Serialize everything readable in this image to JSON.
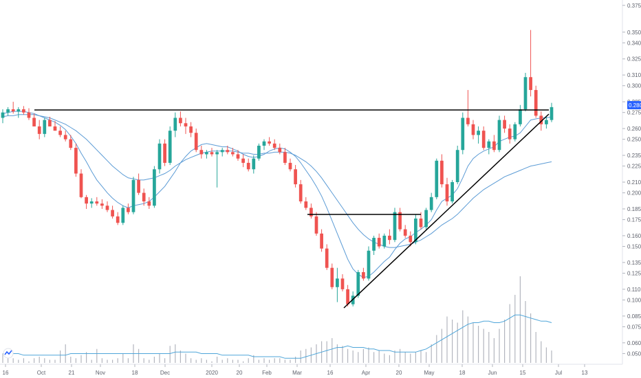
{
  "chart_data": {
    "type": "candlestick",
    "price_axis": {
      "ticks": [
        "0.050",
        "0.060",
        "0.075",
        "0.085",
        "0.100",
        "0.110",
        "0.125",
        "0.135",
        "0.150",
        "0.160",
        "0.175",
        "0.185",
        "0.200",
        "0.210",
        "0.225",
        "0.235",
        "0.250",
        "0.260",
        "0.275",
        "0.285",
        "0.300",
        "0.310",
        "0.325",
        "0.340",
        "0.350",
        "0.375"
      ],
      "range": [
        0.04,
        0.38
      ],
      "last_price_label": "0.280"
    },
    "time_axis": {
      "labels": [
        "16",
        "Oct",
        "21",
        "Nov",
        "18",
        "Dec",
        "2020",
        "20",
        "Feb",
        "Mar",
        "16",
        "Apr",
        "20",
        "May",
        "18",
        "Jun",
        "15",
        "Jul",
        "13"
      ]
    },
    "candles": [
      [
        0.27,
        0.278,
        0.265,
        0.275
      ],
      [
        0.275,
        0.28,
        0.272,
        0.278
      ],
      [
        0.278,
        0.285,
        0.274,
        0.276
      ],
      [
        0.276,
        0.28,
        0.27,
        0.278
      ],
      [
        0.278,
        0.281,
        0.273,
        0.275
      ],
      [
        0.275,
        0.279,
        0.268,
        0.27
      ],
      [
        0.27,
        0.274,
        0.262,
        0.262
      ],
      [
        0.262,
        0.268,
        0.25,
        0.255
      ],
      [
        0.255,
        0.27,
        0.252,
        0.268
      ],
      [
        0.268,
        0.271,
        0.262,
        0.262
      ],
      [
        0.262,
        0.267,
        0.258,
        0.258
      ],
      [
        0.258,
        0.262,
        0.252,
        0.254
      ],
      [
        0.254,
        0.258,
        0.248,
        0.25
      ],
      [
        0.25,
        0.254,
        0.24,
        0.242
      ],
      [
        0.242,
        0.246,
        0.215,
        0.218
      ],
      [
        0.218,
        0.222,
        0.195,
        0.196
      ],
      [
        0.196,
        0.198,
        0.185,
        0.19
      ],
      [
        0.19,
        0.195,
        0.186,
        0.192
      ],
      [
        0.192,
        0.196,
        0.188,
        0.19
      ],
      [
        0.19,
        0.194,
        0.185,
        0.188
      ],
      [
        0.188,
        0.192,
        0.182,
        0.184
      ],
      [
        0.184,
        0.188,
        0.176,
        0.178
      ],
      [
        0.178,
        0.182,
        0.17,
        0.172
      ],
      [
        0.172,
        0.188,
        0.17,
        0.186
      ],
      [
        0.186,
        0.19,
        0.18,
        0.182
      ],
      [
        0.182,
        0.215,
        0.18,
        0.212
      ],
      [
        0.212,
        0.218,
        0.198,
        0.2
      ],
      [
        0.2,
        0.204,
        0.188,
        0.192
      ],
      [
        0.192,
        0.196,
        0.185,
        0.188
      ],
      [
        0.188,
        0.225,
        0.186,
        0.222
      ],
      [
        0.222,
        0.25,
        0.218,
        0.246
      ],
      [
        0.246,
        0.25,
        0.225,
        0.228
      ],
      [
        0.228,
        0.262,
        0.226,
        0.258
      ],
      [
        0.258,
        0.275,
        0.252,
        0.27
      ],
      [
        0.27,
        0.276,
        0.262,
        0.265
      ],
      [
        0.265,
        0.27,
        0.255,
        0.262
      ],
      [
        0.262,
        0.266,
        0.252,
        0.256
      ],
      [
        0.256,
        0.26,
        0.238,
        0.24
      ],
      [
        0.24,
        0.244,
        0.232,
        0.236
      ],
      [
        0.236,
        0.24,
        0.232,
        0.238
      ],
      [
        0.238,
        0.242,
        0.234,
        0.236
      ],
      [
        0.236,
        0.24,
        0.205,
        0.238
      ],
      [
        0.238,
        0.242,
        0.234,
        0.24
      ],
      [
        0.24,
        0.244,
        0.236,
        0.238
      ],
      [
        0.238,
        0.242,
        0.234,
        0.236
      ],
      [
        0.236,
        0.24,
        0.23,
        0.232
      ],
      [
        0.232,
        0.236,
        0.224,
        0.228
      ],
      [
        0.228,
        0.232,
        0.22,
        0.222
      ],
      [
        0.222,
        0.235,
        0.218,
        0.232
      ],
      [
        0.232,
        0.246,
        0.23,
        0.244
      ],
      [
        0.244,
        0.25,
        0.24,
        0.248
      ],
      [
        0.248,
        0.252,
        0.244,
        0.246
      ],
      [
        0.246,
        0.25,
        0.24,
        0.242
      ],
      [
        0.242,
        0.246,
        0.236,
        0.238
      ],
      [
        0.238,
        0.242,
        0.226,
        0.228
      ],
      [
        0.228,
        0.232,
        0.22,
        0.222
      ],
      [
        0.222,
        0.226,
        0.205,
        0.208
      ],
      [
        0.208,
        0.212,
        0.19,
        0.192
      ],
      [
        0.192,
        0.196,
        0.184,
        0.186
      ],
      [
        0.186,
        0.19,
        0.176,
        0.178
      ],
      [
        0.178,
        0.182,
        0.16,
        0.162
      ],
      [
        0.162,
        0.166,
        0.145,
        0.148
      ],
      [
        0.148,
        0.152,
        0.128,
        0.13
      ],
      [
        0.13,
        0.134,
        0.11,
        0.112
      ],
      [
        0.112,
        0.13,
        0.098,
        0.12
      ],
      [
        0.12,
        0.124,
        0.108,
        0.11
      ],
      [
        0.11,
        0.114,
        0.094,
        0.096
      ],
      [
        0.096,
        0.108,
        0.094,
        0.104
      ],
      [
        0.104,
        0.128,
        0.102,
        0.126
      ],
      [
        0.126,
        0.13,
        0.118,
        0.12
      ],
      [
        0.12,
        0.15,
        0.118,
        0.146
      ],
      [
        0.146,
        0.16,
        0.142,
        0.158
      ],
      [
        0.158,
        0.162,
        0.148,
        0.15
      ],
      [
        0.15,
        0.162,
        0.148,
        0.16
      ],
      [
        0.16,
        0.166,
        0.152,
        0.156
      ],
      [
        0.156,
        0.186,
        0.154,
        0.182
      ],
      [
        0.182,
        0.186,
        0.164,
        0.166
      ],
      [
        0.166,
        0.17,
        0.158,
        0.16
      ],
      [
        0.16,
        0.164,
        0.15,
        0.154
      ],
      [
        0.154,
        0.18,
        0.152,
        0.176
      ],
      [
        0.176,
        0.182,
        0.166,
        0.168
      ],
      [
        0.168,
        0.186,
        0.166,
        0.184
      ],
      [
        0.184,
        0.2,
        0.182,
        0.196
      ],
      [
        0.196,
        0.232,
        0.194,
        0.23
      ],
      [
        0.23,
        0.236,
        0.205,
        0.208
      ],
      [
        0.208,
        0.214,
        0.188,
        0.192
      ],
      [
        0.192,
        0.212,
        0.19,
        0.21
      ],
      [
        0.21,
        0.244,
        0.208,
        0.24
      ],
      [
        0.24,
        0.275,
        0.236,
        0.27
      ],
      [
        0.27,
        0.296,
        0.262,
        0.264
      ],
      [
        0.264,
        0.268,
        0.25,
        0.254
      ],
      [
        0.254,
        0.262,
        0.246,
        0.258
      ],
      [
        0.258,
        0.262,
        0.24,
        0.242
      ],
      [
        0.242,
        0.25,
        0.236,
        0.248
      ],
      [
        0.248,
        0.254,
        0.238,
        0.24
      ],
      [
        0.24,
        0.272,
        0.238,
        0.268
      ],
      [
        0.268,
        0.272,
        0.256,
        0.26
      ],
      [
        0.26,
        0.264,
        0.246,
        0.25
      ],
      [
        0.25,
        0.266,
        0.248,
        0.264
      ],
      [
        0.264,
        0.282,
        0.262,
        0.278
      ],
      [
        0.278,
        0.312,
        0.276,
        0.308
      ],
      [
        0.308,
        0.352,
        0.29,
        0.296
      ],
      [
        0.296,
        0.3,
        0.27,
        0.272
      ],
      [
        0.272,
        0.276,
        0.258,
        0.264
      ],
      [
        0.264,
        0.272,
        0.26,
        0.268
      ],
      [
        0.268,
        0.284,
        0.266,
        0.28
      ]
    ],
    "volume": [
      6,
      3,
      3,
      2,
      3,
      1,
      3,
      4,
      3,
      2,
      2,
      8,
      12,
      4,
      3,
      5,
      7,
      2,
      9,
      3,
      2,
      2,
      3,
      6,
      3,
      12,
      9,
      3,
      2,
      4,
      6,
      3,
      11,
      12,
      8,
      6,
      3,
      2,
      3,
      2,
      1,
      4,
      2,
      3,
      2,
      2,
      1,
      3,
      5,
      2,
      3,
      2,
      3,
      3,
      2,
      2,
      4,
      8,
      9,
      10,
      12,
      14,
      14,
      16,
      12,
      11,
      9,
      8,
      7,
      9,
      10,
      7,
      8,
      6,
      5,
      8,
      9,
      7,
      6,
      7,
      8,
      7,
      12,
      18,
      22,
      30,
      28,
      26,
      34,
      30,
      26,
      24,
      22,
      20,
      16,
      22,
      28,
      38,
      44,
      56,
      40,
      32,
      20,
      14,
      10,
      8
    ],
    "volume_ma": [
      6,
      6,
      6,
      6,
      5,
      5,
      5,
      5,
      5,
      5,
      5,
      5,
      5,
      6,
      6,
      6,
      6,
      6,
      6,
      6,
      6,
      6,
      6,
      6,
      6,
      6,
      6,
      6,
      6,
      6,
      6,
      6,
      6,
      7,
      7,
      7,
      7,
      7,
      6,
      6,
      6,
      6,
      5,
      5,
      5,
      5,
      5,
      5,
      4,
      4,
      4,
      4,
      4,
      4,
      3,
      3,
      3,
      3,
      4,
      5,
      6,
      7,
      8,
      9,
      10,
      10,
      11,
      10,
      10,
      10,
      9,
      9,
      8,
      8,
      8,
      7,
      7,
      7,
      7,
      7,
      8,
      9,
      11,
      13,
      15,
      17,
      19,
      21,
      23,
      25,
      26,
      26,
      27,
      27,
      26,
      26,
      27,
      29,
      31,
      31,
      30,
      29,
      28,
      27,
      27,
      26
    ],
    "sma_fast": [
      0.274,
      0.275,
      0.276,
      0.276,
      0.276,
      0.275,
      0.274,
      0.272,
      0.27,
      0.268,
      0.266,
      0.263,
      0.259,
      0.253,
      0.246,
      0.237,
      0.229,
      0.22,
      0.212,
      0.206,
      0.2,
      0.195,
      0.191,
      0.188,
      0.186,
      0.188,
      0.189,
      0.19,
      0.192,
      0.196,
      0.201,
      0.206,
      0.213,
      0.22,
      0.228,
      0.234,
      0.239,
      0.242,
      0.245,
      0.246,
      0.245,
      0.244,
      0.243,
      0.243,
      0.241,
      0.239,
      0.236,
      0.234,
      0.233,
      0.234,
      0.236,
      0.239,
      0.241,
      0.242,
      0.241,
      0.238,
      0.234,
      0.228,
      0.221,
      0.214,
      0.206,
      0.197,
      0.186,
      0.174,
      0.162,
      0.15,
      0.138,
      0.129,
      0.124,
      0.121,
      0.122,
      0.126,
      0.131,
      0.136,
      0.14,
      0.147,
      0.153,
      0.157,
      0.159,
      0.163,
      0.166,
      0.17,
      0.175,
      0.184,
      0.192,
      0.195,
      0.198,
      0.204,
      0.214,
      0.225,
      0.232,
      0.236,
      0.239,
      0.241,
      0.243,
      0.248,
      0.25,
      0.252,
      0.253,
      0.256,
      0.262,
      0.268,
      0.269,
      0.27,
      0.27,
      0.271
    ],
    "sma_slow": [
      0.271,
      0.272,
      0.272,
      0.273,
      0.273,
      0.273,
      0.273,
      0.272,
      0.271,
      0.27,
      0.268,
      0.266,
      0.264,
      0.261,
      0.258,
      0.254,
      0.25,
      0.245,
      0.24,
      0.235,
      0.23,
      0.225,
      0.221,
      0.217,
      0.214,
      0.213,
      0.212,
      0.212,
      0.213,
      0.214,
      0.216,
      0.218,
      0.221,
      0.225,
      0.228,
      0.231,
      0.233,
      0.235,
      0.237,
      0.238,
      0.239,
      0.239,
      0.239,
      0.239,
      0.239,
      0.238,
      0.237,
      0.237,
      0.236,
      0.236,
      0.237,
      0.237,
      0.238,
      0.238,
      0.238,
      0.237,
      0.235,
      0.232,
      0.229,
      0.225,
      0.22,
      0.214,
      0.207,
      0.2,
      0.193,
      0.186,
      0.179,
      0.172,
      0.166,
      0.161,
      0.157,
      0.154,
      0.152,
      0.15,
      0.149,
      0.149,
      0.15,
      0.151,
      0.152,
      0.154,
      0.156,
      0.159,
      0.162,
      0.166,
      0.17,
      0.173,
      0.176,
      0.18,
      0.185,
      0.19,
      0.195,
      0.199,
      0.203,
      0.206,
      0.209,
      0.212,
      0.215,
      0.217,
      0.219,
      0.221,
      0.223,
      0.225,
      0.226,
      0.227,
      0.228,
      0.229
    ]
  },
  "colors": {
    "up": "#26a69a",
    "down": "#ef5350",
    "wick_up": "#26a69a",
    "wick_down": "#ef5350",
    "ma": "#5b9bd5",
    "volume": "#b2b5be",
    "volume_ma": "#4ea5d9",
    "trendline": "#000000",
    "price_label_bg": "#2962ff"
  },
  "logo": {
    "icon": "tradingview-logo-icon"
  }
}
